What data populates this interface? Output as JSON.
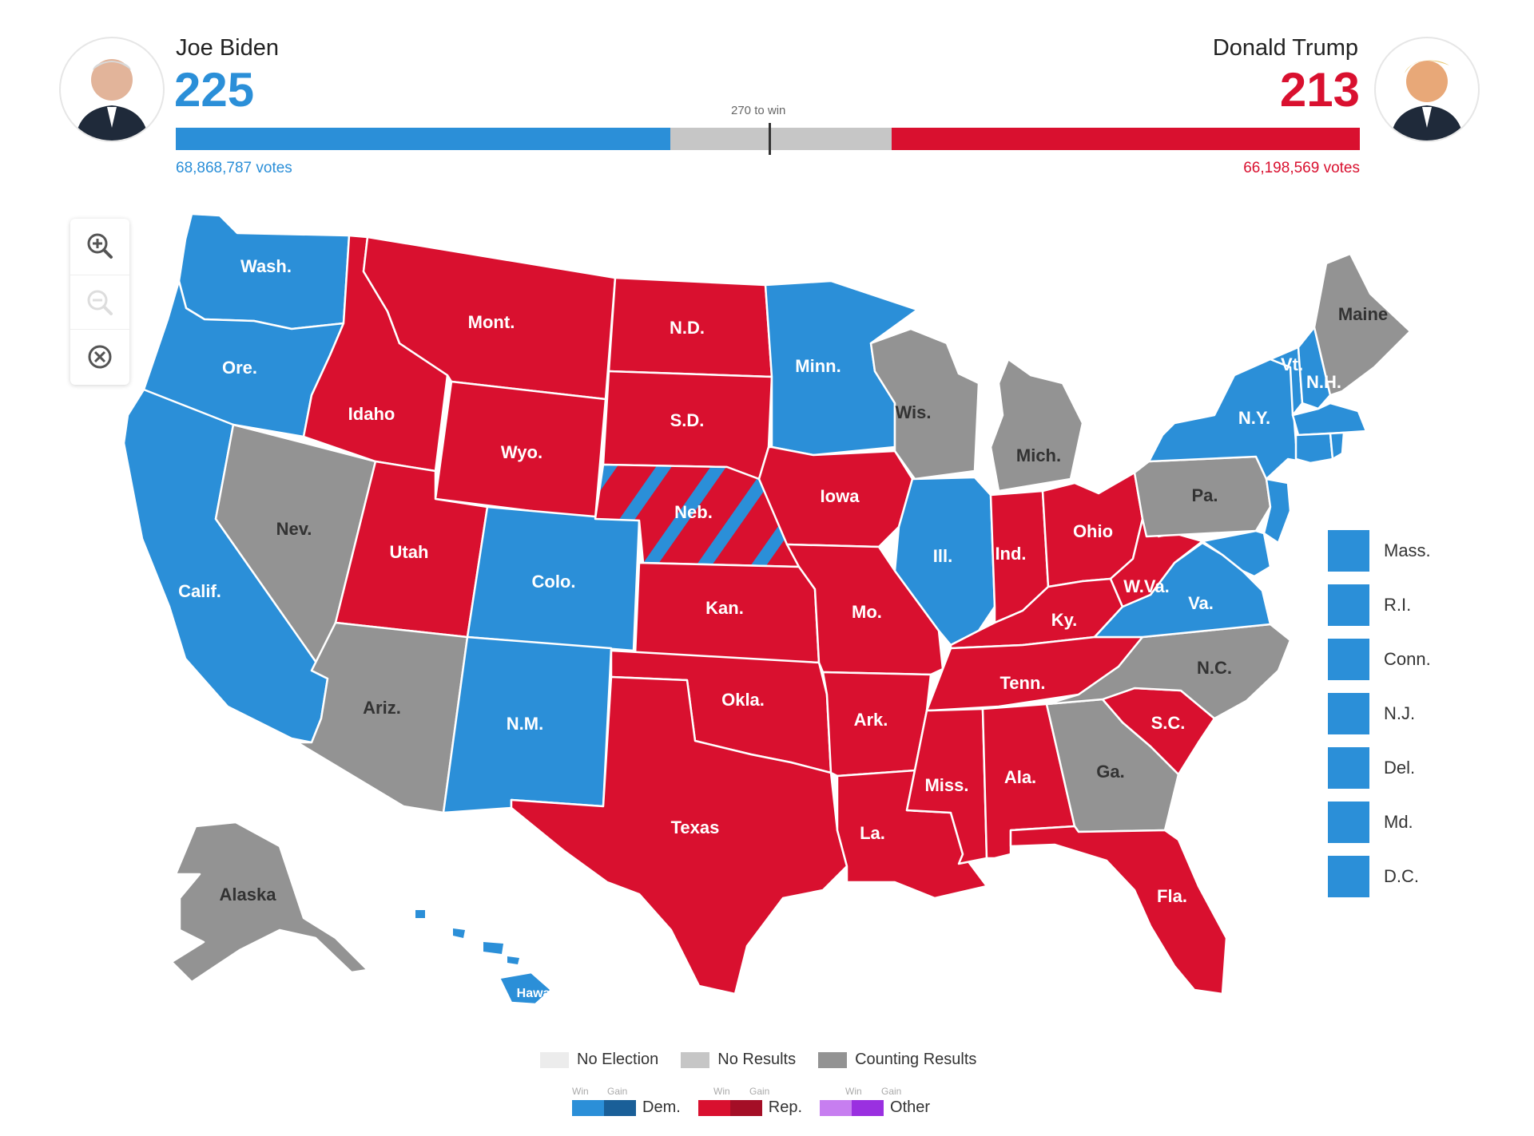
{
  "header": {
    "biden": {
      "name": "Joe Biden",
      "electoral_votes": "225",
      "popular_votes": "68,868,787 votes",
      "avatar_icon": "portrait-icon"
    },
    "trump": {
      "name": "Donald Trump",
      "electoral_votes": "213",
      "popular_votes": "66,198,569 votes",
      "avatar_icon": "portrait-icon"
    },
    "threshold_label": "270 to win",
    "biden_share": 0.4177,
    "trump_share": 0.3952
  },
  "colors": {
    "dem": "#2b8fd8",
    "rep": "#d9102f",
    "counting": "#939393",
    "no_results": "#c6c6c6",
    "no_election": "#ececec",
    "dem_gain": "#1a5f98",
    "rep_gain": "#a40e26",
    "other_win": "#c77ef0",
    "other_gain": "#9a30e0"
  },
  "controls": {
    "zoom_in_icon": "zoom-in-icon",
    "zoom_out_icon": "zoom-out-icon",
    "reset_icon": "close-circle-icon"
  },
  "states": {
    "Wash.": "dem",
    "Ore.": "dem",
    "Calif.": "dem",
    "Nev.": "counting",
    "Idaho": "rep",
    "Mont.": "rep",
    "Wyo.": "rep",
    "Utah": "rep",
    "Colo.": "dem",
    "Ariz.": "counting",
    "N.M.": "dem",
    "N.D.": "rep",
    "S.D.": "rep",
    "Neb.": "split",
    "Kan.": "rep",
    "Okla.": "rep",
    "Texas": "rep",
    "Minn.": "dem",
    "Iowa": "rep",
    "Mo.": "rep",
    "Ark.": "rep",
    "La.": "rep",
    "Wis.": "counting",
    "Ill.": "dem",
    "Mich.": "counting",
    "Ind.": "rep",
    "Ohio": "rep",
    "Ky.": "rep",
    "Tenn.": "rep",
    "Miss.": "rep",
    "Ala.": "rep",
    "Ga.": "counting",
    "Fla.": "rep",
    "S.C.": "rep",
    "N.C.": "counting",
    "Va.": "dem",
    "W.Va.": "rep",
    "Pa.": "counting",
    "N.Y.": "dem",
    "Vt.": "dem",
    "N.H.": "dem",
    "Maine": "counting",
    "Alaska": "counting",
    "Hawaii": "dem"
  },
  "small_states": [
    {
      "label": "Mass.",
      "status": "dem"
    },
    {
      "label": "R.I.",
      "status": "dem"
    },
    {
      "label": "Conn.",
      "status": "dem"
    },
    {
      "label": "N.J.",
      "status": "dem"
    },
    {
      "label": "Del.",
      "status": "dem"
    },
    {
      "label": "Md.",
      "status": "dem"
    },
    {
      "label": "D.C.",
      "status": "dem"
    }
  ],
  "legend": {
    "no_election": "No Election",
    "no_results": "No Results",
    "counting": "Counting Results",
    "win": "Win",
    "gain": "Gain",
    "dem": "Dem.",
    "rep": "Rep.",
    "other": "Other"
  }
}
